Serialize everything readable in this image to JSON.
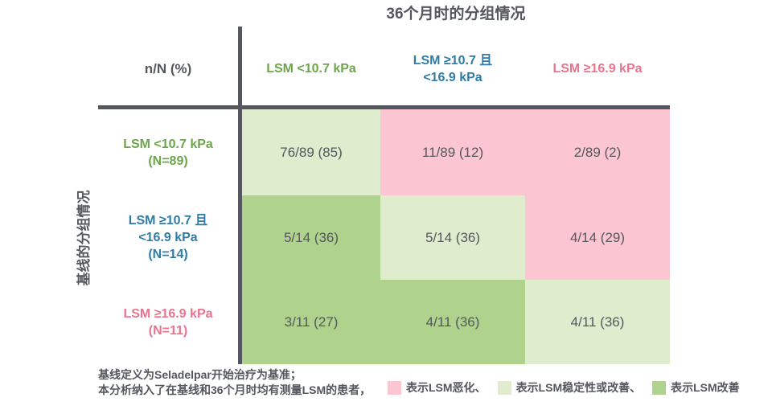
{
  "title": "36个月时的分组情况",
  "y_axis_label": "基线的分组情况",
  "corner_label": "n/N (%)",
  "colors": {
    "worsened": "#FBC5D2",
    "stable": "#DFECCD",
    "improved": "#AFD28C",
    "green": "#6CA64A",
    "blue": "#2E7CA7",
    "pink": "#E8758D",
    "dark": "#55575E"
  },
  "columns": [
    {
      "color": "green",
      "lines": [
        "LSM <10.7 kPa"
      ]
    },
    {
      "color": "blue",
      "lines": [
        "LSM ≥10.7 且",
        "<16.9 kPa"
      ]
    },
    {
      "color": "pink",
      "lines": [
        "LSM ≥16.9 kPa"
      ]
    }
  ],
  "rows": [
    {
      "color": "green",
      "lines": [
        "LSM <10.7 kPa",
        "(N=89)"
      ],
      "cells": [
        {
          "value": "76/89 (85)",
          "status": "stable"
        },
        {
          "value": "11/89 (12)",
          "status": "worsened"
        },
        {
          "value": "2/89 (2)",
          "status": "worsened"
        }
      ]
    },
    {
      "color": "blue",
      "lines": [
        "LSM ≥10.7 且",
        "<16.9 kPa",
        "(N=14)"
      ],
      "cells": [
        {
          "value": "5/14 (36)",
          "status": "improved"
        },
        {
          "value": "5/14 (36)",
          "status": "stable"
        },
        {
          "value": "4/14 (29)",
          "status": "worsened"
        }
      ]
    },
    {
      "color": "pink",
      "lines": [
        "LSM ≥16.9 kPa",
        "(N=11)"
      ],
      "cells": [
        {
          "value": "3/11 (27)",
          "status": "improved"
        },
        {
          "value": "4/11 (36)",
          "status": "improved"
        },
        {
          "value": "4/11 (36)",
          "status": "stable"
        }
      ]
    }
  ],
  "footnotes": {
    "line1": "基线定义为Seladelpar开始治疗为基准；",
    "line2": "本分析纳入了在基线和36个月时均有测量LSM的患者，"
  },
  "legend": [
    {
      "status": "worsened",
      "label": "表示LSM恶化、"
    },
    {
      "status": "stable",
      "label": "表示LSM稳定性或改善、"
    },
    {
      "status": "improved",
      "label": "表示LSM改善"
    }
  ],
  "chart_data": {
    "type": "heatmap",
    "title": "36个月时的分组情况",
    "xlabel": "36个月时的分组情况",
    "ylabel": "基线的分组情况",
    "value_format": "n/N (%)",
    "x_categories": [
      "LSM <10.7 kPa",
      "LSM ≥10.7 且 <16.9 kPa",
      "LSM ≥16.9 kPa"
    ],
    "y_categories": [
      "LSM <10.7 kPa (N=89)",
      "LSM ≥10.7 且 <16.9 kPa (N=14)",
      "LSM ≥16.9 kPa (N=11)"
    ],
    "cell_labels": [
      [
        "76/89 (85)",
        "11/89 (12)",
        "2/89 (2)"
      ],
      [
        "5/14 (36)",
        "5/14 (36)",
        "4/14 (29)"
      ],
      [
        "3/11 (27)",
        "4/11 (36)",
        "4/11 (36)"
      ]
    ],
    "cell_percent": [
      [
        85,
        12,
        2
      ],
      [
        36,
        36,
        29
      ],
      [
        27,
        36,
        36
      ]
    ],
    "cell_status": [
      [
        "stable",
        "worsened",
        "worsened"
      ],
      [
        "improved",
        "stable",
        "worsened"
      ],
      [
        "improved",
        "improved",
        "stable"
      ]
    ],
    "legend_entries": [
      "表示LSM恶化",
      "表示LSM稳定性或改善",
      "表示LSM改善"
    ],
    "legend_position": "bottom-right",
    "grid": false
  }
}
